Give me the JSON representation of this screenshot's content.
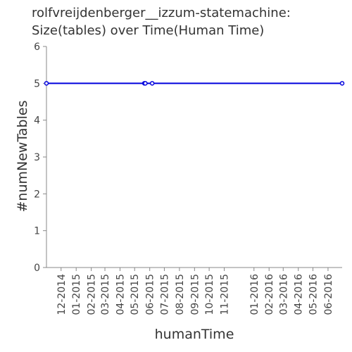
{
  "chart_data": {
    "type": "line",
    "title": "rolfvreijdenberger__izzum-statemachine:\nSize(tables) over Time(Human Time)",
    "title_lines": [
      "rolfvreijdenberger__izzum-statemachine:",
      "Size(tables) over Time(Human Time)"
    ],
    "xlabel": "humanTime",
    "ylabel": "#numNewTables",
    "ylim": [
      0,
      6
    ],
    "yticks": [
      0,
      1,
      2,
      3,
      4,
      5,
      6
    ],
    "xlim": [
      "2014-11-01",
      "2016-06-30"
    ],
    "xtick_labels": [
      "12-2014",
      "01-2015",
      "02-2015",
      "03-2015",
      "04-2015",
      "05-2015",
      "06-2015",
      "07-2015",
      "08-2015",
      "09-2015",
      "10-2015",
      "11-2015",
      "01-2016",
      "02-2016",
      "03-2016",
      "04-2016",
      "05-2016",
      "06-2016"
    ],
    "xtick_dates": [
      "2014-12-01",
      "2015-01-01",
      "2015-02-01",
      "2015-03-01",
      "2015-04-01",
      "2015-05-01",
      "2015-06-01",
      "2015-07-01",
      "2015-08-01",
      "2015-09-01",
      "2015-10-01",
      "2015-11-01",
      "2016-01-01",
      "2016-02-01",
      "2016-03-01",
      "2016-04-01",
      "2016-05-01",
      "2016-06-01"
    ],
    "series": [
      {
        "color": "#0000dd",
        "points": [
          {
            "x": "2014-11-01",
            "y": 5
          },
          {
            "x": "2015-05-21",
            "y": 5
          },
          {
            "x": "2015-05-23",
            "y": 5
          },
          {
            "x": "2015-06-06",
            "y": 5
          },
          {
            "x": "2016-06-30",
            "y": 5
          }
        ]
      }
    ],
    "grid": false
  }
}
